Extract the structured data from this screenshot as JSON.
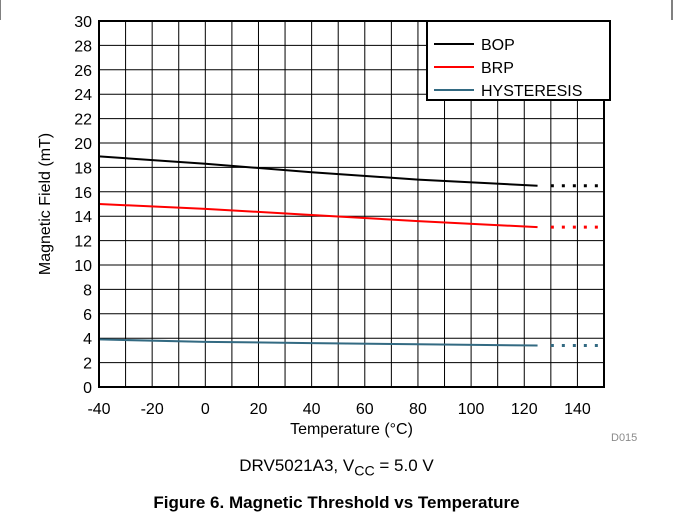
{
  "chart_data": {
    "type": "line",
    "title": "",
    "xlabel": "Temperature (°C)",
    "ylabel": "Magnetic Field (mT)",
    "xlim": [
      -40,
      150
    ],
    "ylim": [
      0,
      30
    ],
    "x_ticks": [
      "-40",
      "-20",
      "0",
      "20",
      "40",
      "60",
      "80",
      "100",
      "120",
      "140"
    ],
    "y_ticks": [
      "0",
      "2",
      "4",
      "6",
      "8",
      "10",
      "12",
      "14",
      "16",
      "18",
      "20",
      "22",
      "24",
      "26",
      "28",
      "30"
    ],
    "grid": true,
    "legend_position": "top-right",
    "series": [
      {
        "name": "BOP",
        "color": "#000000",
        "x": [
          -40,
          0,
          40,
          80,
          125
        ],
        "y": [
          18.9,
          18.3,
          17.6,
          17.0,
          16.5
        ],
        "extension": {
          "x": [
            130,
            150
          ],
          "y": [
            16.5,
            16.5
          ],
          "style": "dotted"
        }
      },
      {
        "name": "BRP",
        "color": "#ff0000",
        "x": [
          -40,
          0,
          40,
          80,
          125
        ],
        "y": [
          15.0,
          14.6,
          14.1,
          13.6,
          13.1
        ],
        "extension": {
          "x": [
            130,
            150
          ],
          "y": [
            13.1,
            13.1
          ],
          "style": "dotted"
        }
      },
      {
        "name": "HYSTERESIS",
        "color": "#336a82",
        "x": [
          -40,
          0,
          40,
          80,
          125
        ],
        "y": [
          3.9,
          3.7,
          3.6,
          3.5,
          3.4
        ],
        "extension": {
          "x": [
            130,
            150
          ],
          "y": [
            3.4,
            3.4
          ],
          "style": "dotted"
        }
      }
    ]
  },
  "subcaption": {
    "prefix": "DRV5021A3, V",
    "subscript": "CC",
    "suffix": " = 5.0 V"
  },
  "doc_code": "D015",
  "figure_caption": "Figure 6. Magnetic Threshold vs Temperature"
}
